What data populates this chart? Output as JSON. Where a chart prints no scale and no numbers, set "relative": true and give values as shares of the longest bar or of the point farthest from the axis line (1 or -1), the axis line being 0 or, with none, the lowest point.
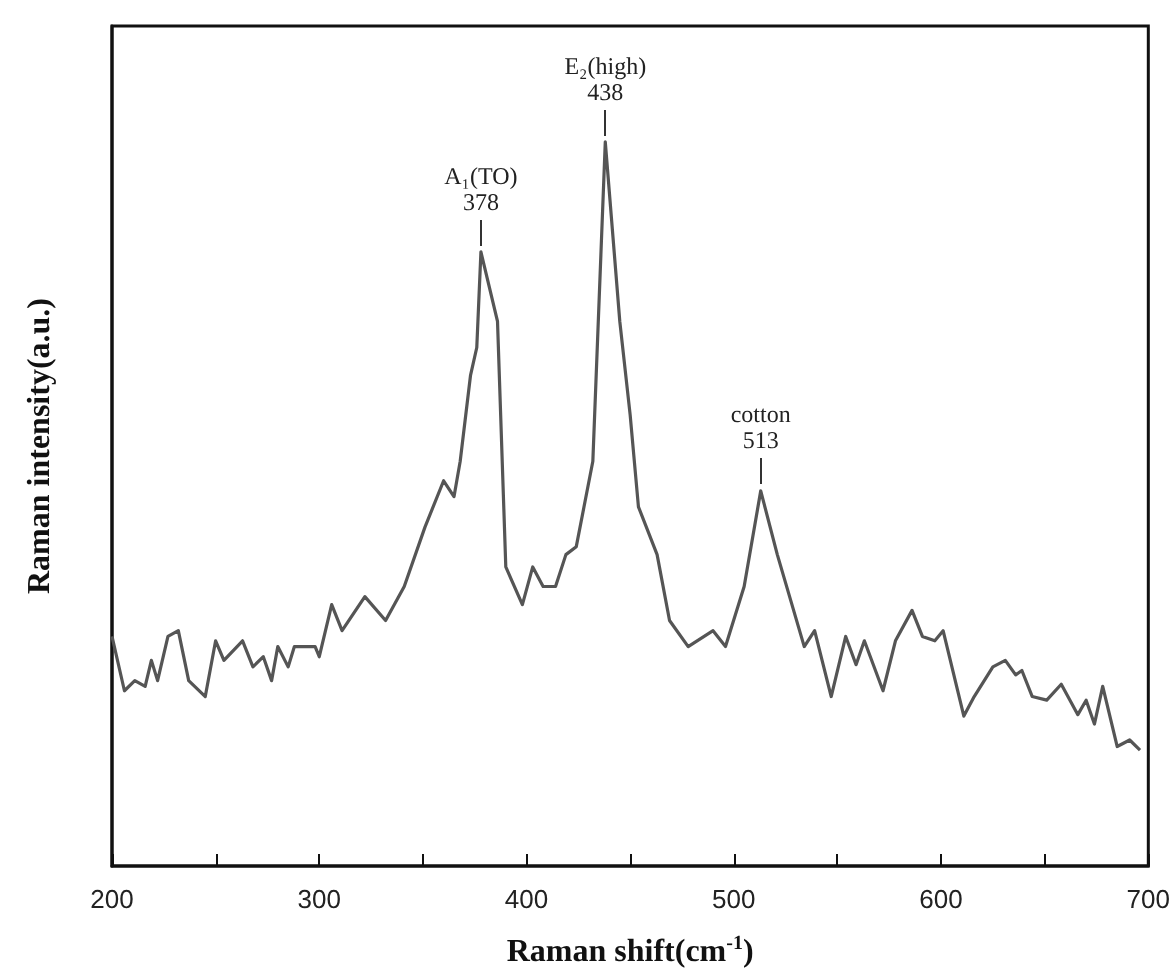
{
  "chart_data": {
    "type": "line",
    "relative": true,
    "xlabel": "Raman shift(cm$^{-1}$)",
    "ylabel": "Raman intensity(a.u.)",
    "xlim": [
      200,
      700
    ],
    "xticks": [
      200,
      {
        "value": 250,
        "label": null
      },
      300,
      {
        "value": 350,
        "label": null
      },
      400,
      {
        "value": 450,
        "label": null
      },
      500,
      {
        "value": 550,
        "label": null
      },
      600,
      {
        "value": 650,
        "label": null
      },
      700
    ],
    "grid": false,
    "marker": "none",
    "line_style": "solid",
    "annotations": [
      {
        "text": "A₁(TO)\n378",
        "x": 378,
        "y": 0.848
      },
      {
        "text": "E₂(high)\n438",
        "x": 438,
        "y": 1.0
      },
      {
        "text": "cotton\n513",
        "x": 513,
        "y": 0.518
      }
    ],
    "series": [
      {
        "color": "#555555",
        "x": [
          200,
          206,
          211,
          216,
          219,
          222,
          227,
          232,
          237,
          245,
          250,
          254,
          263,
          268,
          273,
          277,
          280,
          285,
          288,
          298,
          300,
          306,
          311,
          322,
          332,
          341,
          351,
          360,
          365,
          368,
          373,
          376,
          378,
          386,
          390,
          398,
          403,
          408,
          414,
          419,
          424,
          432,
          438,
          445,
          450,
          454,
          463,
          469,
          478,
          490,
          496,
          505,
          513,
          521,
          534,
          539,
          547,
          554,
          559,
          563,
          572,
          578,
          586,
          591,
          597,
          601,
          611,
          616,
          625,
          631,
          636,
          639,
          644,
          651,
          658,
          666,
          670,
          674,
          678,
          685,
          691,
          696
        ],
        "values": [
          0.317,
          0.242,
          0.256,
          0.248,
          0.284,
          0.256,
          0.317,
          0.325,
          0.256,
          0.234,
          0.311,
          0.284,
          0.311,
          0.275,
          0.289,
          0.256,
          0.303,
          0.275,
          0.303,
          0.303,
          0.289,
          0.361,
          0.325,
          0.372,
          0.339,
          0.386,
          0.468,
          0.532,
          0.51,
          0.559,
          0.678,
          0.716,
          0.848,
          0.752,
          0.413,
          0.361,
          0.413,
          0.386,
          0.386,
          0.43,
          0.441,
          0.559,
          1.0,
          0.752,
          0.623,
          0.496,
          0.43,
          0.339,
          0.303,
          0.325,
          0.303,
          0.386,
          0.518,
          0.43,
          0.303,
          0.325,
          0.234,
          0.317,
          0.278,
          0.311,
          0.242,
          0.311,
          0.353,
          0.317,
          0.311,
          0.325,
          0.207,
          0.234,
          0.275,
          0.284,
          0.264,
          0.27,
          0.234,
          0.229,
          0.251,
          0.209,
          0.229,
          0.196,
          0.248,
          0.165,
          0.174,
          0.16
        ]
      }
    ]
  }
}
